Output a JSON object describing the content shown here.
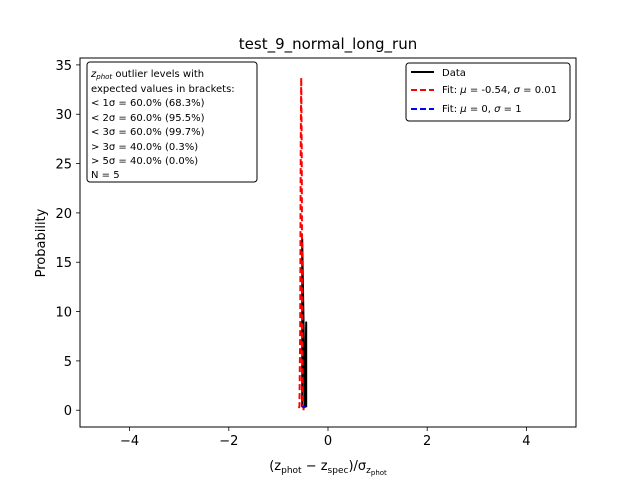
{
  "chart_data": {
    "type": "line",
    "title": "test_9_normal_long_run",
    "xlabel_parts": [
      "(z",
      "phot",
      " − z",
      "spec",
      ")/σ",
      "z",
      "phot"
    ],
    "ylabel": "Probability",
    "xlim": [
      -5,
      5
    ],
    "ylim": [
      -1.7,
      35.7
    ],
    "xticks": [
      -4,
      -2,
      0,
      2,
      4
    ],
    "xtick_labels": [
      "−4",
      "−2",
      "0",
      "2",
      "4"
    ],
    "yticks": [
      0,
      5,
      10,
      15,
      20,
      25,
      30,
      35
    ],
    "ytick_labels": [
      "0",
      "5",
      "10",
      "15",
      "20",
      "25",
      "30",
      "35"
    ],
    "grid": false,
    "legend_placement": "top-right",
    "series": [
      {
        "name": "Data",
        "color": "#000000",
        "style": "solid",
        "x": [
          -0.52,
          -0.52,
          -0.51,
          -0.49,
          -0.47,
          -0.45,
          -0.44,
          -0.44
        ],
        "y": [
          0.3,
          17.3,
          14.0,
          8.0,
          0.3,
          5.5,
          8.9,
          0.3
        ]
      },
      {
        "name": "Fit: μ = -0.54, σ = 0.01",
        "color": "#ff0000",
        "style": "dashed",
        "x": [
          -0.49,
          -0.505,
          -0.52,
          -0.53,
          -0.54,
          -0.55,
          -0.56,
          -0.575,
          -0.59
        ],
        "y": [
          0.0,
          0.5,
          8.2,
          26.5,
          33.7,
          26.5,
          8.2,
          0.5,
          0.0
        ]
      },
      {
        "name": "Fit: μ = 0, σ = 1",
        "color": "#0000ff",
        "style": "dashed",
        "x": [
          -0.52,
          -0.46
        ],
        "y": [
          0.34,
          0.34
        ]
      }
    ],
    "legend": [
      {
        "label": "Data",
        "color": "#000000",
        "style": "solid"
      },
      {
        "label_parts": [
          "Fit: ",
          "μ",
          " = -0.54, ",
          "σ",
          " = 0.01"
        ],
        "color": "#ff0000",
        "style": "dashed"
      },
      {
        "label_parts": [
          "Fit: ",
          "μ",
          " = 0, ",
          "σ",
          " = 1"
        ],
        "color": "#0000ff",
        "style": "dashed"
      }
    ],
    "annotation": {
      "line1_parts": [
        "z",
        "phot",
        " outlier levels with"
      ],
      "lines": [
        " expected values in brackets:",
        "< 1σ = 60.0% (68.3%)",
        "< 2σ = 60.0% (95.5%)",
        "< 3σ = 60.0% (99.7%)",
        "> 3σ = 40.0% (0.3%)",
        "> 5σ = 40.0% (0.0%)",
        "N = 5"
      ]
    }
  }
}
